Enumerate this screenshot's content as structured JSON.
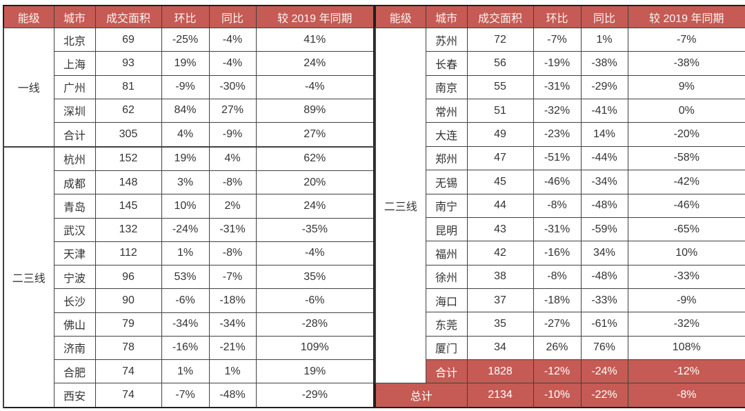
{
  "colors": {
    "page_bg": "#ffffff",
    "header_bg": "#c55b54",
    "header_text": "#fcf4f3",
    "accent_bg": "#c55b54",
    "accent_text": "#ffffff",
    "body_text": "#333333",
    "grid_border": "#404040",
    "frame_border": "#1f1f1f"
  },
  "chart_data": {
    "type": "table",
    "columns": [
      "能级",
      "城市",
      "成交面积",
      "环比",
      "同比",
      "较 2019 年同期"
    ],
    "panels": [
      {
        "side": "left",
        "groups": [
          {
            "tier": "一线",
            "rows": [
              [
                "北京",
                "69",
                "-25%",
                "-4%",
                "41%",
                false
              ],
              [
                "上海",
                "93",
                "19%",
                "-4%",
                "24%",
                false
              ],
              [
                "广州",
                "81",
                "-9%",
                "-30%",
                "-4%",
                false
              ],
              [
                "深圳",
                "62",
                "84%",
                "27%",
                "89%",
                false
              ],
              [
                "合计",
                "305",
                "4%",
                "-9%",
                "27%",
                false
              ]
            ]
          },
          {
            "tier": "二三线",
            "rows": [
              [
                "杭州",
                "152",
                "19%",
                "4%",
                "62%",
                false
              ],
              [
                "成都",
                "148",
                "3%",
                "-8%",
                "20%",
                false
              ],
              [
                "青岛",
                "145",
                "10%",
                "2%",
                "24%",
                false
              ],
              [
                "武汉",
                "132",
                "-24%",
                "-31%",
                "-35%",
                false
              ],
              [
                "天津",
                "112",
                "1%",
                "-8%",
                "-4%",
                false
              ],
              [
                "宁波",
                "96",
                "53%",
                "-7%",
                "35%",
                false
              ],
              [
                "长沙",
                "90",
                "-6%",
                "-18%",
                "-6%",
                false
              ],
              [
                "佛山",
                "79",
                "-34%",
                "-34%",
                "-28%",
                false
              ],
              [
                "济南",
                "78",
                "-16%",
                "-21%",
                "109%",
                false
              ],
              [
                "合肥",
                "74",
                "1%",
                "1%",
                "19%",
                false
              ],
              [
                "西安",
                "74",
                "-7%",
                "-48%",
                "-29%",
                false
              ]
            ]
          }
        ],
        "footer": null
      },
      {
        "side": "right",
        "groups": [
          {
            "tier": "二三线",
            "rows": [
              [
                "苏州",
                "72",
                "-7%",
                "1%",
                "-7%",
                false
              ],
              [
                "长春",
                "56",
                "-19%",
                "-38%",
                "-38%",
                false
              ],
              [
                "南京",
                "55",
                "-31%",
                "-29%",
                "9%",
                false
              ],
              [
                "常州",
                "51",
                "-32%",
                "-41%",
                "0%",
                false
              ],
              [
                "大连",
                "49",
                "-23%",
                "14%",
                "-20%",
                false
              ],
              [
                "郑州",
                "47",
                "-51%",
                "-44%",
                "-58%",
                false
              ],
              [
                "无锡",
                "45",
                "-46%",
                "-34%",
                "-42%",
                false
              ],
              [
                "南宁",
                "44",
                "-8%",
                "-48%",
                "-46%",
                false
              ],
              [
                "昆明",
                "43",
                "-31%",
                "-59%",
                "-65%",
                false
              ],
              [
                "福州",
                "42",
                "-16%",
                "34%",
                "10%",
                false
              ],
              [
                "徐州",
                "38",
                "-8%",
                "-48%",
                "-33%",
                false
              ],
              [
                "海口",
                "37",
                "-18%",
                "-33%",
                "-9%",
                false
              ],
              [
                "东莞",
                "35",
                "-27%",
                "-61%",
                "-32%",
                false
              ],
              [
                "厦门",
                "34",
                "26%",
                "76%",
                "108%",
                false
              ],
              [
                "合计",
                "1828",
                "-12%",
                "-24%",
                "-12%",
                true
              ]
            ]
          }
        ],
        "footer": [
          "总计",
          "2134",
          "-10%",
          "-22%",
          "-8%"
        ]
      }
    ]
  }
}
